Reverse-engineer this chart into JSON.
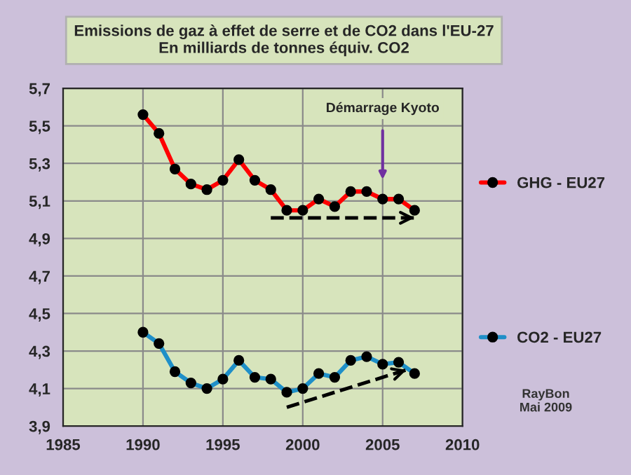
{
  "chart_data": {
    "type": "line",
    "title": "Emissions de gaz à effet de serre et de CO2 dans l'EU-27\nEn milliards de tonnes équiv. CO2",
    "x": [
      1990,
      1991,
      1992,
      1993,
      1994,
      1995,
      1996,
      1997,
      1998,
      1999,
      2000,
      2001,
      2002,
      2003,
      2004,
      2005,
      2006,
      2007
    ],
    "series": [
      {
        "name": "GHG - EU27",
        "color": "#ff0000",
        "values": [
          5.56,
          5.46,
          5.27,
          5.19,
          5.16,
          5.21,
          5.32,
          5.21,
          5.16,
          5.05,
          5.05,
          5.11,
          5.07,
          5.15,
          5.15,
          5.11,
          5.11,
          5.05
        ]
      },
      {
        "name": "CO2 - EU27",
        "color": "#1f8fc8",
        "values": [
          4.4,
          4.34,
          4.19,
          4.13,
          4.1,
          4.15,
          4.25,
          4.16,
          4.15,
          4.08,
          4.1,
          4.18,
          4.16,
          4.25,
          4.27,
          4.23,
          4.24,
          4.18
        ]
      },
      {
        "type": "line",
        "x": [
          1998,
          2007
        ],
        "values": [
          5.01,
          5.01
        ],
        "color": "#000000",
        "line_style": "dashed",
        "marker": "none"
      },
      {
        "type": "line",
        "x": [
          1999,
          2006.5
        ],
        "values": [
          4.0,
          4.2
        ],
        "color": "#000000",
        "line_style": "dashed",
        "marker": "none"
      }
    ],
    "marker": "circle",
    "line_style": "solid",
    "xlim": [
      1985,
      2010
    ],
    "xticks": [
      1985,
      1990,
      1995,
      2000,
      2005,
      2010
    ],
    "ylim": [
      3.9,
      5.7
    ],
    "yticks": [
      {
        "value": 3.9,
        "label": "3,9"
      },
      {
        "value": 4.1,
        "label": "4,1"
      },
      {
        "value": 4.3,
        "label": "4,3"
      },
      {
        "value": 4.5,
        "label": "4,5"
      },
      {
        "value": 4.7,
        "label": "4,7"
      },
      {
        "value": 4.9,
        "label": "4,9"
      },
      {
        "value": 5.1,
        "label": "5,1"
      },
      {
        "value": 5.3,
        "label": "5,3"
      },
      {
        "value": 5.5,
        "label": "5,5"
      },
      {
        "value": 5.7,
        "label": "5,7"
      }
    ],
    "grid": true,
    "legend": "right",
    "annotations": [
      "Démarrage Kyoto",
      "RayBon\nMai 2009"
    ]
  }
}
